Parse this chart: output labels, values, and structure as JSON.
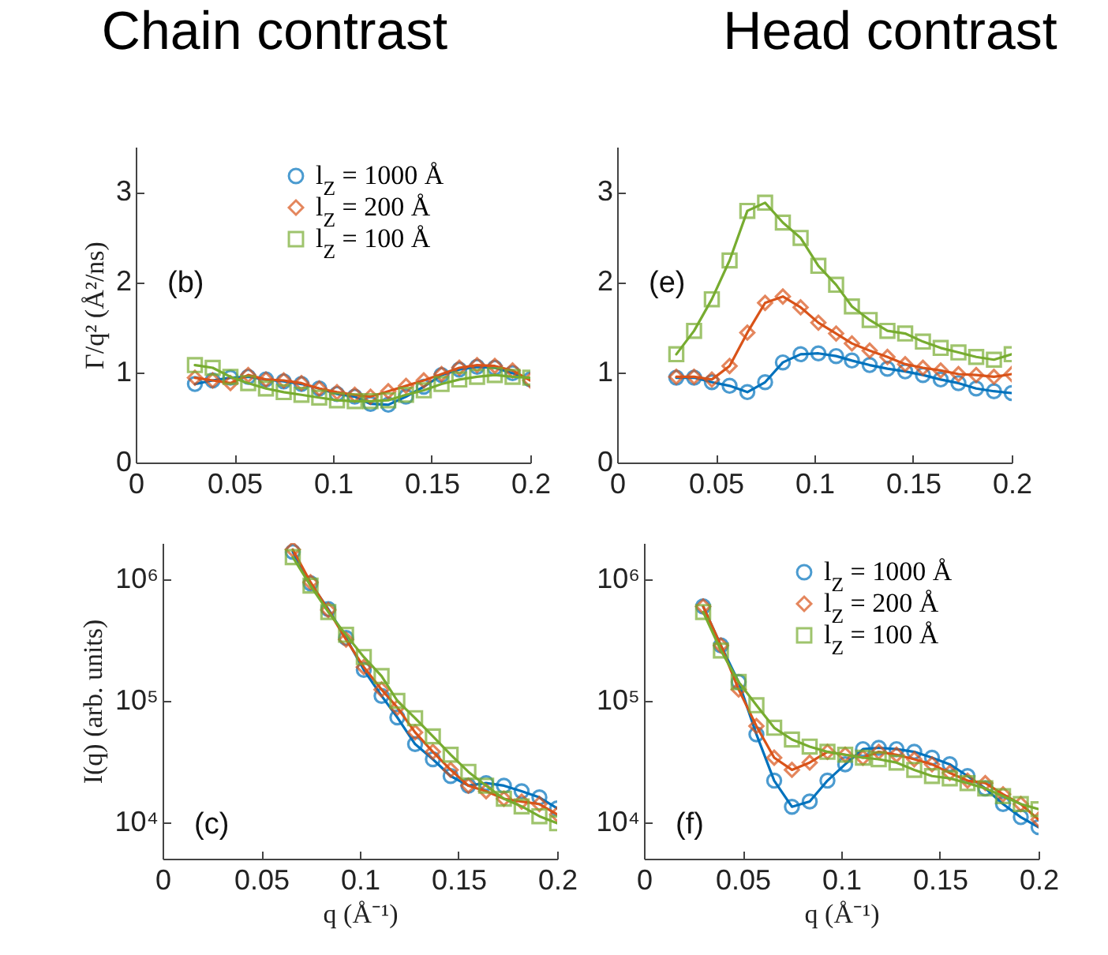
{
  "chart_data": [
    {
      "type": "line",
      "title": "Chain contrast",
      "ylabel": "Γ/q² (Å²/ns)",
      "x": [
        0.03,
        0.039,
        0.048,
        0.057,
        0.066,
        0.075,
        0.084,
        0.093,
        0.102,
        0.111,
        0.119,
        0.128,
        0.137,
        0.146,
        0.155,
        0.164,
        0.173,
        0.182,
        0.191,
        0.2
      ],
      "xlim": [
        0,
        0.2
      ],
      "xticks": [
        0,
        0.05,
        0.1,
        0.15,
        0.2
      ],
      "ylim": [
        0,
        3.5
      ],
      "yticks": [
        0,
        1,
        2,
        3
      ],
      "legend": "top right",
      "annotations": [
        "(b)"
      ],
      "series": [
        {
          "name": "l$_{Z}$ = 1000 Å",
          "color": "#0072bd",
          "marker": "circle",
          "values": [
            0.87,
            0.91,
            0.94,
            0.95,
            0.92,
            0.9,
            0.87,
            0.82,
            0.76,
            0.73,
            0.65,
            0.64,
            0.73,
            0.84,
            0.97,
            1.03,
            1.06,
            1.05,
            0.99,
            0.92
          ]
        },
        {
          "name": "l$_{Z}$ = 200 Å",
          "color": "#d95319",
          "marker": "diamond",
          "values": [
            0.94,
            0.91,
            0.88,
            0.97,
            0.92,
            0.91,
            0.88,
            0.82,
            0.78,
            0.75,
            0.73,
            0.79,
            0.85,
            0.91,
            0.98,
            1.05,
            1.08,
            1.07,
            1.02,
            0.91
          ]
        },
        {
          "name": "l$_{Z}$ = 100 Å",
          "color": "#77ac30",
          "marker": "square",
          "values": [
            1.08,
            1.05,
            0.95,
            0.88,
            0.82,
            0.78,
            0.75,
            0.72,
            0.69,
            0.68,
            0.68,
            0.69,
            0.75,
            0.8,
            0.87,
            0.92,
            0.95,
            0.97,
            0.95,
            0.94
          ]
        }
      ]
    },
    {
      "type": "line",
      "title": "Head contrast",
      "x": [
        0.03,
        0.039,
        0.048,
        0.057,
        0.066,
        0.075,
        0.084,
        0.093,
        0.102,
        0.111,
        0.119,
        0.128,
        0.137,
        0.146,
        0.155,
        0.164,
        0.173,
        0.182,
        0.191,
        0.2
      ],
      "xlim": [
        0,
        0.2
      ],
      "xticks": [
        0,
        0.05,
        0.1,
        0.15,
        0.2
      ],
      "ylim": [
        0,
        3.5
      ],
      "yticks": [
        0,
        1,
        2,
        3
      ],
      "annotations": [
        "(e)"
      ],
      "series": [
        {
          "color": "#0072bd",
          "marker": "circle",
          "values": [
            0.94,
            0.94,
            0.89,
            0.85,
            0.78,
            0.89,
            1.11,
            1.2,
            1.21,
            1.18,
            1.13,
            1.08,
            1.04,
            1.01,
            0.97,
            0.92,
            0.88,
            0.82,
            0.79,
            0.77
          ]
        },
        {
          "color": "#d95319",
          "marker": "diamond",
          "values": [
            0.95,
            0.95,
            0.92,
            1.07,
            1.44,
            1.77,
            1.84,
            1.72,
            1.55,
            1.43,
            1.32,
            1.24,
            1.17,
            1.09,
            1.05,
            1.02,
            0.98,
            0.97,
            0.95,
            0.98
          ]
        },
        {
          "color": "#77ac30",
          "marker": "square",
          "values": [
            1.2,
            1.46,
            1.81,
            2.24,
            2.79,
            2.88,
            2.66,
            2.49,
            2.18,
            1.97,
            1.73,
            1.58,
            1.46,
            1.43,
            1.34,
            1.27,
            1.22,
            1.17,
            1.14,
            1.2
          ]
        }
      ]
    },
    {
      "type": "line",
      "xlabel": "q (Å⁻¹)",
      "ylabel": "I(q) (arb. units)",
      "log": true,
      "x": [
        0.066,
        0.075,
        0.084,
        0.093,
        0.102,
        0.111,
        0.119,
        0.128,
        0.137,
        0.146,
        0.155,
        0.164,
        0.173,
        0.182,
        0.191,
        0.2
      ],
      "xlim": [
        0,
        0.2
      ],
      "xticks": [
        0,
        0.05,
        0.1,
        0.15,
        0.2
      ],
      "ylim": [
        5000,
        2000000
      ],
      "yticks": [
        {
          "value": 10000,
          "label": "10⁴"
        },
        {
          "value": 100000,
          "label": "10⁵"
        },
        {
          "value": 1000000,
          "label": "10⁶"
        }
      ],
      "annotations": [
        "(c)"
      ],
      "series": [
        {
          "color": "#0072bd",
          "marker": "circle",
          "values": [
            1690000,
            930000,
            570000,
            330000,
            180000,
            110000,
            73000,
            44000,
            33000,
            24000,
            20000,
            21000,
            20000,
            18000,
            16000,
            13000
          ]
        },
        {
          "color": "#d95319",
          "marker": "diamond",
          "values": [
            1770000,
            950000,
            560000,
            320000,
            190000,
            124000,
            88000,
            55000,
            38000,
            27000,
            20000,
            18000,
            15600,
            14800,
            14100,
            11600
          ]
        },
        {
          "color": "#77ac30",
          "marker": "square",
          "values": [
            1530000,
            890000,
            540000,
            350000,
            230000,
            160000,
            100000,
            72000,
            51000,
            36000,
            26000,
            20000,
            15600,
            13500,
            11200,
            9800
          ]
        }
      ]
    },
    {
      "type": "line",
      "xlabel": "q (Å⁻¹)",
      "log": true,
      "x": [
        0.03,
        0.039,
        0.048,
        0.057,
        0.066,
        0.075,
        0.084,
        0.093,
        0.102,
        0.111,
        0.119,
        0.128,
        0.137,
        0.146,
        0.155,
        0.164,
        0.173,
        0.182,
        0.191,
        0.2
      ],
      "xlim": [
        0,
        0.2
      ],
      "xticks": [
        0,
        0.05,
        0.1,
        0.15,
        0.2
      ],
      "ylim": [
        5000,
        2000000
      ],
      "yticks": [
        {
          "value": 10000,
          "label": "10⁴"
        },
        {
          "value": 100000,
          "label": "10⁵"
        },
        {
          "value": 1000000,
          "label": "10⁶"
        }
      ],
      "legend": "top right",
      "annotations": [
        "(f)"
      ],
      "series": [
        {
          "name": "l$_{Z}$ = 1000 Å",
          "color": "#0072bd",
          "marker": "circle",
          "values": [
            600000,
            286000,
            143000,
            53000,
            22000,
            13400,
            14800,
            22000,
            30000,
            40000,
            41000,
            40000,
            38000,
            34000,
            30000,
            24000,
            19000,
            14100,
            11000,
            9100
          ]
        },
        {
          "name": "l$_{Z}$ = 200 Å",
          "color": "#d95319",
          "marker": "diamond",
          "values": [
            600000,
            286000,
            124000,
            62000,
            34000,
            27000,
            31000,
            38000,
            36000,
            34000,
            38000,
            36000,
            33000,
            30000,
            25500,
            22000,
            21000,
            17000,
            14100,
            10500
          ]
        },
        {
          "name": "l$_{Z}$ = 100 Å",
          "color": "#77ac30",
          "marker": "square",
          "values": [
            540000,
            260000,
            143000,
            92000,
            60000,
            48000,
            42000,
            38000,
            36000,
            34000,
            33000,
            31000,
            27000,
            24000,
            23000,
            21000,
            19000,
            16400,
            14100,
            12800
          ]
        }
      ]
    }
  ]
}
